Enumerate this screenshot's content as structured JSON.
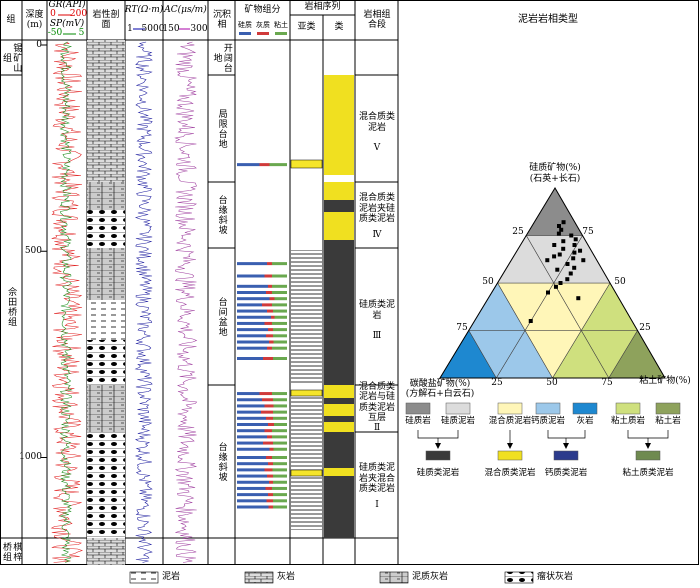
{
  "header": {
    "formation": "组",
    "depth": "深度(m)",
    "gr": "GR(API)",
    "gr_min": "0",
    "gr_max": "200",
    "sp": "SP(mV)",
    "sp_min": "-50",
    "sp_max": "5",
    "lithology": "岩性剖面",
    "rt": "RT(Ω·m)",
    "rt_min": "1",
    "rt_max": "5000",
    "ac": "AC(μs/m)",
    "ac_min": "150",
    "ac_max": "300",
    "facies": "沉积相",
    "minerals": "矿物组分",
    "mineral_legend": [
      "硅质",
      "灰质",
      "粘土"
    ],
    "sequence": "岩相序列",
    "subclass": "亚类",
    "class": "类",
    "assemblage": "岩相组合段",
    "panel_title": "泥岩岩相类型"
  },
  "formations": [
    "锡矿山组",
    "佘田桥组",
    "棋梓桥组"
  ],
  "depth_ticks": [
    0,
    500,
    1000
  ],
  "facies": [
    "开阔台地",
    "局限台地",
    "台缘斜坡",
    "台间盆地",
    "台缘斜坡"
  ],
  "assemblages": [
    {
      "name": "混合质类泥岩",
      "number": "Ⅴ"
    },
    {
      "name": "混合质类泥岩夹硅质类泥岩",
      "number": "Ⅳ"
    },
    {
      "name": "硅质类泥岩",
      "number": "Ⅲ"
    },
    {
      "name": "混合质类泥岩与硅质类泥岩互层",
      "number": "Ⅱ"
    },
    {
      "name": "硅质类泥岩夹混合质类泥岩",
      "number": "Ⅰ"
    }
  ],
  "mineral_bars": [
    [
      290,
      45,
      20,
      35
    ],
    [
      530,
      60,
      10,
      30
    ],
    [
      560,
      55,
      15,
      30
    ],
    [
      585,
      62,
      8,
      30
    ],
    [
      600,
      58,
      12,
      30
    ],
    [
      615,
      65,
      10,
      25
    ],
    [
      630,
      50,
      20,
      30
    ],
    [
      645,
      60,
      12,
      28
    ],
    [
      660,
      68,
      7,
      25
    ],
    [
      675,
      55,
      15,
      30
    ],
    [
      690,
      62,
      10,
      28
    ],
    [
      705,
      58,
      14,
      28
    ],
    [
      720,
      64,
      9,
      27
    ],
    [
      735,
      60,
      10,
      30
    ],
    [
      760,
      52,
      20,
      28
    ],
    [
      845,
      45,
      25,
      30
    ],
    [
      860,
      50,
      22,
      28
    ],
    [
      875,
      55,
      18,
      27
    ],
    [
      890,
      48,
      24,
      28
    ],
    [
      905,
      58,
      14,
      28
    ],
    [
      920,
      62,
      12,
      26
    ],
    [
      935,
      55,
      15,
      30
    ],
    [
      950,
      60,
      10,
      30
    ],
    [
      965,
      52,
      20,
      28
    ],
    [
      980,
      65,
      8,
      27
    ],
    [
      1000,
      58,
      12,
      30
    ],
    [
      1015,
      62,
      10,
      28
    ],
    [
      1030,
      55,
      16,
      29
    ],
    [
      1045,
      60,
      12,
      28
    ],
    [
      1060,
      64,
      8,
      28
    ],
    [
      1075,
      57,
      13,
      30
    ],
    [
      1090,
      62,
      10,
      28
    ],
    [
      1105,
      59,
      13,
      28
    ],
    [
      1120,
      63,
      9,
      28
    ]
  ],
  "ternary": {
    "axis_silica": "硅质矿物(%)",
    "axis_silica_note": "(石英+长石)",
    "axis_carbonate": "碳酸盐矿物(%)",
    "axis_carbonate_note": "(方解石+白云石)",
    "axis_clay": "粘土矿物(%)",
    "ticks_left": [
      25,
      50,
      75
    ],
    "ticks_right": [
      75,
      50,
      25
    ],
    "ticks_bottom": [
      25,
      50,
      75
    ],
    "samples": [
      [
        82,
        5,
        13
      ],
      [
        78,
        8,
        14
      ],
      [
        75,
        5,
        20
      ],
      [
        72,
        10,
        18
      ],
      [
        70,
        6,
        24
      ],
      [
        68,
        12,
        20
      ],
      [
        66,
        8,
        26
      ],
      [
        65,
        15,
        20
      ],
      [
        63,
        10,
        27
      ],
      [
        62,
        6,
        32
      ],
      [
        60,
        14,
        26
      ],
      [
        58,
        12,
        30
      ],
      [
        57,
        20,
        23
      ],
      [
        55,
        15,
        30
      ],
      [
        52,
        18,
        30
      ],
      [
        50,
        22,
        28
      ],
      [
        48,
        25,
        27
      ],
      [
        45,
        30,
        25
      ],
      [
        42,
        18,
        40
      ],
      [
        30,
        45,
        25
      ],
      [
        62,
        22,
        16
      ],
      [
        70,
        15,
        15
      ],
      [
        76,
        10,
        14
      ],
      [
        80,
        8,
        12
      ],
      [
        73,
        4,
        23
      ],
      [
        67,
        5,
        28
      ],
      [
        64,
        18,
        18
      ]
    ]
  },
  "types": [
    "硅质岩",
    "硅质泥岩",
    "混合质泥岩",
    "钙质泥岩",
    "灰岩",
    "粘土质岩",
    "粘土岩"
  ],
  "groups": [
    "硅质类泥岩",
    "混合质类泥岩",
    "钙质类泥岩",
    "粘土质类泥岩"
  ],
  "legend": [
    "泥岩",
    "灰岩",
    "泥质灰岩",
    "瘤状灰岩"
  ]
}
